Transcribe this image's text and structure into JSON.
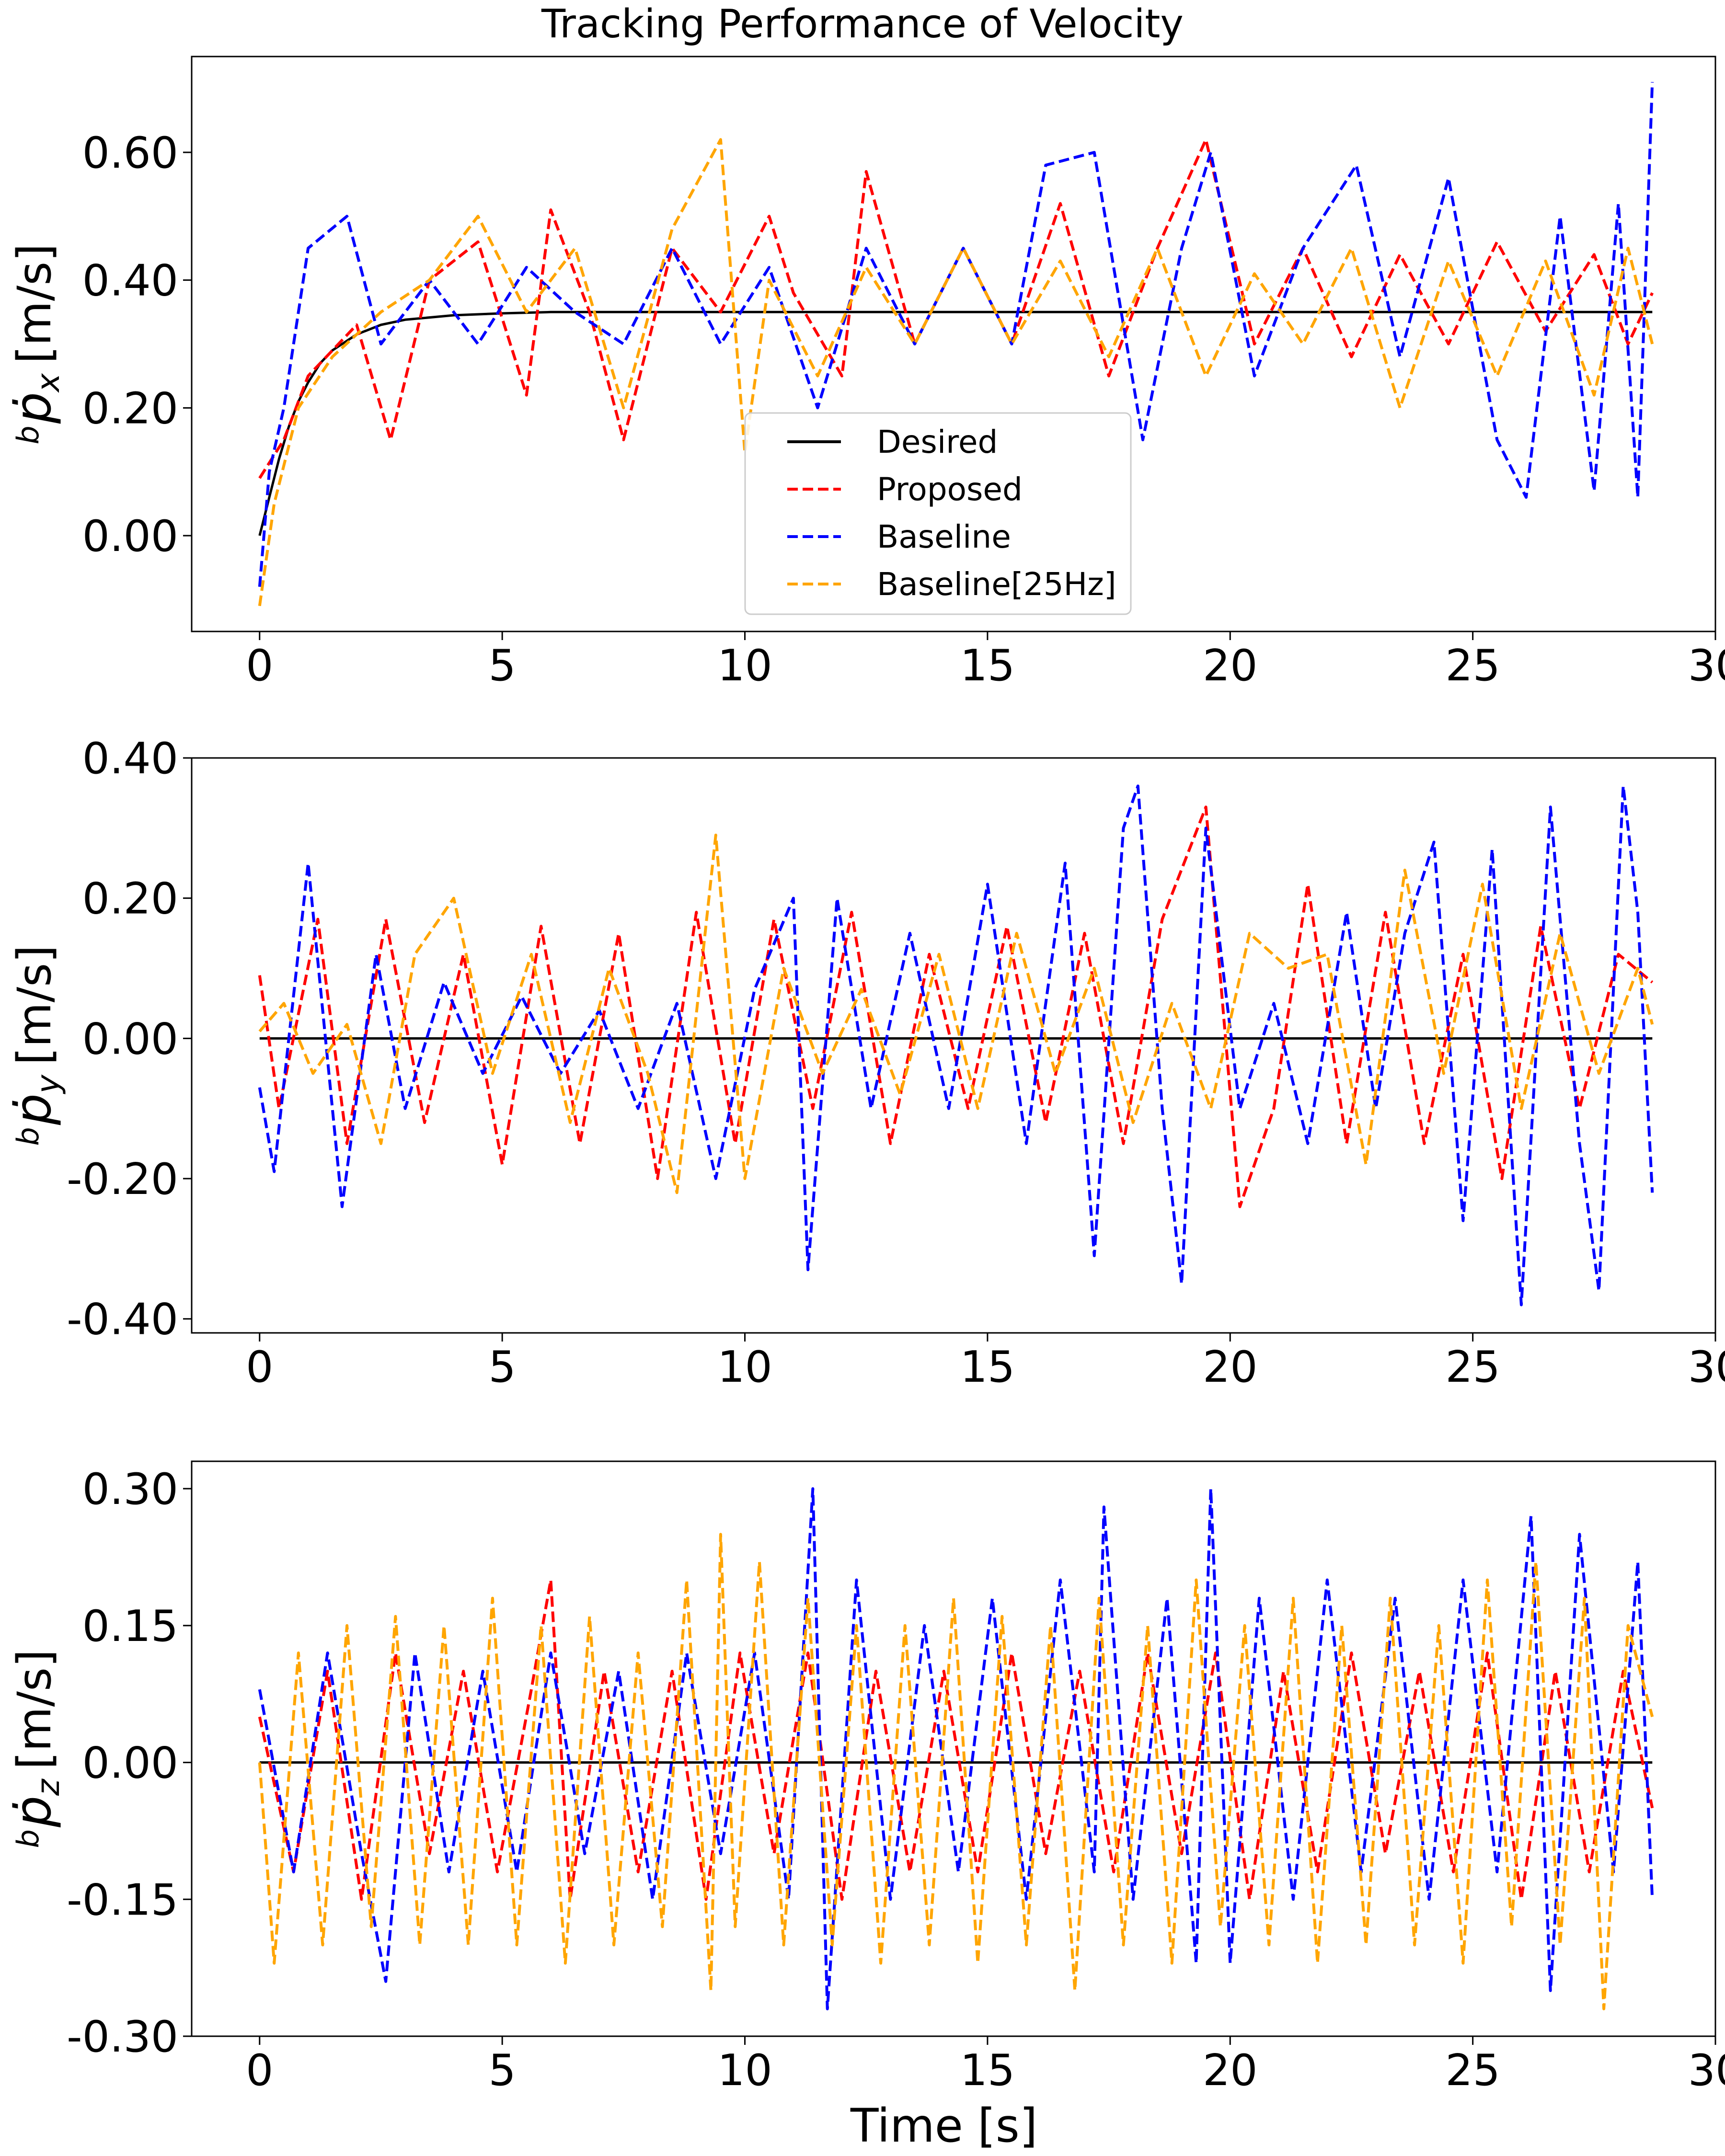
{
  "chart_data": [
    {
      "type": "line",
      "panel": "x",
      "title": "Tracking Performance of Velocity",
      "ylabel": "${}^b\\dot{p}_x$ [m/s]",
      "ylabel_parts": {
        "prefix": "b",
        "symbol": "p",
        "subscript": "x",
        "unit": "[m/s]"
      },
      "xlabel": "",
      "xlim": [
        -1.4,
        30
      ],
      "ylim": [
        -0.15,
        0.75
      ],
      "x_ticks": [
        "0",
        "5",
        "10",
        "15",
        "20",
        "25",
        "30"
      ],
      "y_ticks": [
        {
          "value": 0.0,
          "label": "0.00"
        },
        {
          "value": 0.2,
          "label": "0.20"
        },
        {
          "value": 0.4,
          "label": "0.40"
        },
        {
          "value": 0.6,
          "label": "0.60"
        }
      ],
      "grid": false,
      "legend": {
        "placement": "lower-center",
        "entries": [
          {
            "label": "Desired",
            "color": "#000000",
            "style": "solid"
          },
          {
            "label": "Proposed",
            "color": "#ff0000",
            "style": "dashed"
          },
          {
            "label": "Baseline",
            "color": "#0000ff",
            "style": "dashed"
          },
          {
            "label": "Baseline[25Hz]",
            "color": "#ffa500",
            "style": "dashed"
          }
        ]
      },
      "series": [
        {
          "name": "Desired",
          "color": "#000000",
          "style": "solid",
          "x": [
            0,
            0.2,
            0.4,
            0.6,
            0.8,
            1.0,
            1.25,
            1.5,
            2.0,
            2.5,
            3.0,
            4.0,
            5.0,
            6.0,
            8.0,
            10.0,
            15.0,
            20.0,
            25.0,
            28.7
          ],
          "y": [
            0.0,
            0.06,
            0.12,
            0.17,
            0.21,
            0.24,
            0.27,
            0.29,
            0.315,
            0.33,
            0.338,
            0.345,
            0.348,
            0.35,
            0.35,
            0.35,
            0.35,
            0.35,
            0.35,
            0.35
          ]
        },
        {
          "name": "Proposed",
          "color": "#ff0000",
          "style": "dashed",
          "x": [
            0,
            0.5,
            1.0,
            2.0,
            2.7,
            3.5,
            4.5,
            5.5,
            6.0,
            6.8,
            7.5,
            8.5,
            9.5,
            10.5,
            11.0,
            12.0,
            12.5,
            13.5,
            14.5,
            15.5,
            16.5,
            17.5,
            18.5,
            19.5,
            20.5,
            21.5,
            22.5,
            23.5,
            24.5,
            25.5,
            26.5,
            27.5,
            28.2,
            28.7
          ],
          "y": [
            0.09,
            0.15,
            0.25,
            0.33,
            0.15,
            0.4,
            0.46,
            0.22,
            0.51,
            0.35,
            0.15,
            0.45,
            0.35,
            0.5,
            0.38,
            0.25,
            0.57,
            0.3,
            0.45,
            0.3,
            0.52,
            0.25,
            0.45,
            0.62,
            0.3,
            0.45,
            0.28,
            0.44,
            0.3,
            0.46,
            0.32,
            0.44,
            0.3,
            0.38
          ]
        },
        {
          "name": "Baseline",
          "color": "#0000ff",
          "style": "dashed",
          "x": [
            0,
            0.2,
            0.5,
            1.0,
            1.8,
            2.5,
            3.5,
            4.5,
            5.5,
            6.5,
            7.5,
            8.5,
            9.5,
            10.5,
            11.5,
            12.5,
            13.5,
            14.5,
            15.5,
            16.2,
            17.2,
            18.2,
            19.0,
            19.6,
            20.5,
            21.5,
            22.6,
            23.5,
            24.5,
            25.5,
            26.1,
            26.8,
            27.5,
            28.0,
            28.4,
            28.7
          ],
          "y": [
            -0.08,
            0.1,
            0.2,
            0.45,
            0.5,
            0.3,
            0.4,
            0.3,
            0.42,
            0.35,
            0.3,
            0.45,
            0.3,
            0.42,
            0.2,
            0.45,
            0.3,
            0.45,
            0.3,
            0.58,
            0.6,
            0.15,
            0.45,
            0.6,
            0.25,
            0.45,
            0.58,
            0.28,
            0.56,
            0.15,
            0.06,
            0.5,
            0.07,
            0.52,
            0.06,
            0.71
          ]
        },
        {
          "name": "Baseline[25Hz]",
          "color": "#ffa500",
          "style": "dashed",
          "x": [
            0,
            0.3,
            0.8,
            1.5,
            2.5,
            3.5,
            4.5,
            5.5,
            6.5,
            7.5,
            8.5,
            9.5,
            10.0,
            10.5,
            11.5,
            12.5,
            13.5,
            14.5,
            15.5,
            16.5,
            17.5,
            18.5,
            19.5,
            20.5,
            21.5,
            22.5,
            23.5,
            24.5,
            25.5,
            26.5,
            27.5,
            28.2,
            28.7
          ],
          "y": [
            -0.11,
            0.05,
            0.2,
            0.28,
            0.35,
            0.4,
            0.5,
            0.35,
            0.45,
            0.2,
            0.48,
            0.62,
            0.13,
            0.4,
            0.25,
            0.42,
            0.3,
            0.45,
            0.3,
            0.43,
            0.28,
            0.45,
            0.25,
            0.41,
            0.3,
            0.45,
            0.2,
            0.43,
            0.25,
            0.43,
            0.22,
            0.45,
            0.3
          ]
        }
      ]
    },
    {
      "type": "line",
      "panel": "y",
      "title": "",
      "ylabel": "${}^b\\dot{p}_y$ [m/s]",
      "ylabel_parts": {
        "prefix": "b",
        "symbol": "p",
        "subscript": "y",
        "unit": "[m/s]"
      },
      "xlabel": "",
      "xlim": [
        -1.4,
        30
      ],
      "ylim": [
        -0.42,
        0.4
      ],
      "x_ticks": [
        "0",
        "5",
        "10",
        "15",
        "20",
        "25",
        "30"
      ],
      "y_ticks": [
        {
          "value": -0.4,
          "label": "-0.40"
        },
        {
          "value": -0.2,
          "label": "-0.20"
        },
        {
          "value": 0.0,
          "label": "0.00"
        },
        {
          "value": 0.2,
          "label": "0.20"
        },
        {
          "value": 0.4,
          "label": "0.40"
        }
      ],
      "grid": false,
      "series": [
        {
          "name": "Desired",
          "color": "#000000",
          "style": "solid",
          "x": [
            0,
            28.7
          ],
          "y": [
            0.0,
            0.0
          ]
        },
        {
          "name": "Proposed",
          "color": "#ff0000",
          "style": "dashed",
          "x": [
            0,
            0.4,
            1.2,
            1.8,
            2.6,
            3.4,
            4.2,
            5.0,
            5.8,
            6.6,
            7.4,
            8.2,
            9.0,
            9.8,
            10.6,
            11.4,
            12.2,
            13.0,
            13.8,
            14.6,
            15.4,
            16.2,
            17.0,
            17.8,
            18.6,
            19.5,
            20.2,
            20.9,
            21.6,
            22.4,
            23.2,
            24.0,
            24.8,
            25.6,
            26.4,
            27.2,
            28.0,
            28.7
          ],
          "y": [
            0.09,
            -0.1,
            0.17,
            -0.15,
            0.17,
            -0.12,
            0.12,
            -0.18,
            0.16,
            -0.15,
            0.15,
            -0.2,
            0.18,
            -0.15,
            0.17,
            -0.1,
            0.18,
            -0.15,
            0.12,
            -0.1,
            0.16,
            -0.12,
            0.15,
            -0.15,
            0.17,
            0.33,
            -0.24,
            -0.1,
            0.22,
            -0.15,
            0.18,
            -0.15,
            0.12,
            -0.2,
            0.16,
            -0.1,
            0.12,
            0.08
          ]
        },
        {
          "name": "Baseline",
          "color": "#0000ff",
          "style": "dashed",
          "x": [
            0,
            0.3,
            1.0,
            1.7,
            2.4,
            3.0,
            3.8,
            4.6,
            5.4,
            6.2,
            7.0,
            7.8,
            8.6,
            9.4,
            10.2,
            11.0,
            11.3,
            11.9,
            12.6,
            13.4,
            14.2,
            15.0,
            15.8,
            16.6,
            17.2,
            17.8,
            18.1,
            18.6,
            19.0,
            19.5,
            20.2,
            20.9,
            21.6,
            22.4,
            23.0,
            23.6,
            24.2,
            24.8,
            25.4,
            26.0,
            26.6,
            27.2,
            27.6,
            28.1,
            28.4,
            28.7
          ],
          "y": [
            -0.07,
            -0.19,
            0.25,
            -0.24,
            0.12,
            -0.1,
            0.08,
            -0.05,
            0.06,
            -0.05,
            0.04,
            -0.1,
            0.05,
            -0.2,
            0.07,
            0.2,
            -0.33,
            0.2,
            -0.1,
            0.15,
            -0.1,
            0.22,
            -0.15,
            0.25,
            -0.31,
            0.3,
            0.36,
            -0.1,
            -0.35,
            0.3,
            -0.1,
            0.05,
            -0.15,
            0.18,
            -0.1,
            0.15,
            0.28,
            -0.26,
            0.27,
            -0.38,
            0.33,
            -0.15,
            -0.36,
            0.36,
            0.18,
            -0.22
          ]
        },
        {
          "name": "Baseline[25Hz]",
          "color": "#ffa500",
          "style": "dashed",
          "x": [
            0,
            0.5,
            1.1,
            1.8,
            2.5,
            3.2,
            4.0,
            4.8,
            5.6,
            6.4,
            7.2,
            8.0,
            8.6,
            9.4,
            10.0,
            10.8,
            11.6,
            12.4,
            13.2,
            14.0,
            14.8,
            15.6,
            16.4,
            17.2,
            18.0,
            18.8,
            19.6,
            20.4,
            21.2,
            22.0,
            22.8,
            23.6,
            24.4,
            25.2,
            26.0,
            26.8,
            27.6,
            28.4,
            28.7
          ],
          "y": [
            0.01,
            0.05,
            -0.05,
            0.02,
            -0.15,
            0.12,
            0.2,
            -0.05,
            0.12,
            -0.12,
            0.1,
            -0.05,
            -0.22,
            0.29,
            -0.2,
            0.1,
            -0.05,
            0.07,
            -0.08,
            0.12,
            -0.1,
            0.15,
            -0.05,
            0.1,
            -0.12,
            0.05,
            -0.1,
            0.15,
            0.1,
            0.12,
            -0.18,
            0.24,
            -0.05,
            0.22,
            -0.1,
            0.15,
            -0.05,
            0.1,
            0.02
          ]
        }
      ]
    },
    {
      "type": "line",
      "panel": "z",
      "title": "",
      "ylabel": "${}^b\\dot{p}_z$ [m/s]",
      "ylabel_parts": {
        "prefix": "b",
        "symbol": "p",
        "subscript": "z",
        "unit": "[m/s]"
      },
      "xlabel": "Time [s]",
      "xlim": [
        -1.4,
        30
      ],
      "ylim": [
        -0.3,
        0.33
      ],
      "x_ticks": [
        "0",
        "5",
        "10",
        "15",
        "20",
        "25",
        "30"
      ],
      "y_ticks": [
        {
          "value": -0.3,
          "label": "-0.30"
        },
        {
          "value": -0.15,
          "label": "-0.15"
        },
        {
          "value": 0.0,
          "label": "0.00"
        },
        {
          "value": 0.15,
          "label": "0.15"
        },
        {
          "value": 0.3,
          "label": "0.30"
        }
      ],
      "grid": false,
      "series": [
        {
          "name": "Desired",
          "color": "#000000",
          "style": "solid",
          "x": [
            0,
            28.7
          ],
          "y": [
            0.0,
            0.0
          ]
        },
        {
          "name": "Proposed",
          "color": "#ff0000",
          "style": "dashed",
          "x": [
            0,
            0.7,
            1.4,
            2.1,
            2.8,
            3.5,
            4.2,
            4.9,
            5.6,
            6.0,
            6.4,
            7.1,
            7.8,
            8.5,
            9.2,
            9.9,
            10.6,
            11.3,
            12.0,
            12.7,
            13.4,
            14.1,
            14.8,
            15.5,
            16.2,
            16.9,
            17.6,
            18.3,
            19.0,
            19.7,
            20.4,
            21.1,
            21.8,
            22.5,
            23.2,
            23.9,
            24.6,
            25.3,
            26.0,
            26.7,
            27.4,
            28.1,
            28.7
          ],
          "y": [
            0.05,
            -0.12,
            0.1,
            -0.15,
            0.12,
            -0.1,
            0.1,
            -0.12,
            0.08,
            0.2,
            -0.15,
            0.1,
            -0.12,
            0.1,
            -0.15,
            0.12,
            -0.1,
            0.12,
            -0.15,
            0.1,
            -0.12,
            0.1,
            -0.12,
            0.12,
            -0.1,
            0.1,
            -0.12,
            0.12,
            -0.1,
            0.12,
            -0.15,
            0.1,
            -0.12,
            0.12,
            -0.1,
            0.1,
            -0.12,
            0.12,
            -0.15,
            0.1,
            -0.12,
            0.1,
            -0.05
          ]
        },
        {
          "name": "Baseline",
          "color": "#0000ff",
          "style": "dashed",
          "x": [
            0,
            0.7,
            1.4,
            2.1,
            2.6,
            3.2,
            3.9,
            4.6,
            5.3,
            6.0,
            6.7,
            7.4,
            8.1,
            8.8,
            9.5,
            10.2,
            10.9,
            11.4,
            11.7,
            12.3,
            13.0,
            13.7,
            14.4,
            15.1,
            15.8,
            16.5,
            17.2,
            17.4,
            18.0,
            18.7,
            19.3,
            19.6,
            20.0,
            20.6,
            21.3,
            22.0,
            22.7,
            23.4,
            24.1,
            24.8,
            25.5,
            26.2,
            26.6,
            27.2,
            27.9,
            28.4,
            28.7
          ],
          "y": [
            0.08,
            -0.12,
            0.12,
            -0.1,
            -0.24,
            0.12,
            -0.12,
            0.1,
            -0.12,
            0.12,
            -0.1,
            0.1,
            -0.15,
            0.12,
            -0.1,
            0.12,
            -0.15,
            0.3,
            -0.27,
            0.2,
            -0.15,
            0.15,
            -0.12,
            0.18,
            -0.15,
            0.2,
            -0.12,
            0.28,
            -0.15,
            0.18,
            -0.22,
            0.3,
            -0.22,
            0.18,
            -0.15,
            0.2,
            -0.12,
            0.18,
            -0.15,
            0.2,
            -0.12,
            0.27,
            -0.25,
            0.25,
            -0.12,
            0.22,
            -0.15
          ]
        },
        {
          "name": "Baseline[25Hz]",
          "color": "#ffa500",
          "style": "dashed",
          "x": [
            0,
            0.3,
            0.8,
            1.3,
            1.8,
            2.3,
            2.8,
            3.3,
            3.8,
            4.3,
            4.8,
            5.3,
            5.8,
            6.3,
            6.8,
            7.3,
            7.8,
            8.3,
            8.8,
            9.3,
            9.5,
            9.8,
            10.3,
            10.8,
            11.3,
            11.8,
            12.3,
            12.8,
            13.3,
            13.8,
            14.3,
            14.8,
            15.3,
            15.8,
            16.3,
            16.8,
            17.3,
            17.8,
            18.3,
            18.8,
            19.3,
            19.8,
            20.3,
            20.8,
            21.3,
            21.8,
            22.3,
            22.8,
            23.3,
            23.8,
            24.3,
            24.8,
            25.3,
            25.8,
            26.3,
            26.8,
            27.3,
            27.7,
            28.2,
            28.7
          ],
          "y": [
            0.0,
            -0.22,
            0.12,
            -0.2,
            0.15,
            -0.18,
            0.16,
            -0.2,
            0.15,
            -0.2,
            0.18,
            -0.2,
            0.15,
            -0.22,
            0.16,
            -0.2,
            0.12,
            -0.18,
            0.2,
            -0.25,
            0.25,
            -0.18,
            0.22,
            -0.2,
            0.18,
            -0.2,
            0.15,
            -0.22,
            0.15,
            -0.2,
            0.18,
            -0.22,
            0.16,
            -0.2,
            0.15,
            -0.25,
            0.18,
            -0.2,
            0.15,
            -0.22,
            0.2,
            -0.18,
            0.15,
            -0.2,
            0.18,
            -0.22,
            0.15,
            -0.2,
            0.18,
            -0.2,
            0.15,
            -0.22,
            0.2,
            -0.18,
            0.22,
            -0.2,
            0.18,
            -0.27,
            0.15,
            0.05
          ]
        }
      ]
    }
  ]
}
